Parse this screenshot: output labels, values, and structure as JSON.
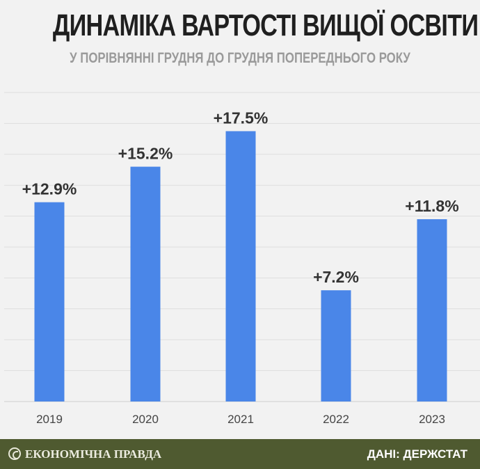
{
  "header": {
    "title": "ДИНАМІКА ВАРТОСТІ ВИЩОЇ ОСВІТИ",
    "subtitle": "У ПОРІВНЯННІ ГРУДНЯ ДО ГРУДНЯ ПОПЕРЕДНЬОГО РОКУ"
  },
  "footer": {
    "brand": "ЕКОНОМІЧНА ПРАВДА",
    "source": "ДАНІ: ДЕРЖСТАТ"
  },
  "colors": {
    "bar": "#4a86e8",
    "footer": "#4f5a30"
  },
  "chart_data": {
    "type": "bar",
    "categories": [
      "2019",
      "2020",
      "2021",
      "2022",
      "2023"
    ],
    "values": [
      12.9,
      15.2,
      17.5,
      7.2,
      11.8
    ],
    "value_labels": [
      "+12.9%",
      "+15.2%",
      "+17.5%",
      "+7.2%",
      "+11.8%"
    ],
    "ylim": [
      0,
      20
    ],
    "grid": true,
    "y_axis_labels_shown": false
  }
}
